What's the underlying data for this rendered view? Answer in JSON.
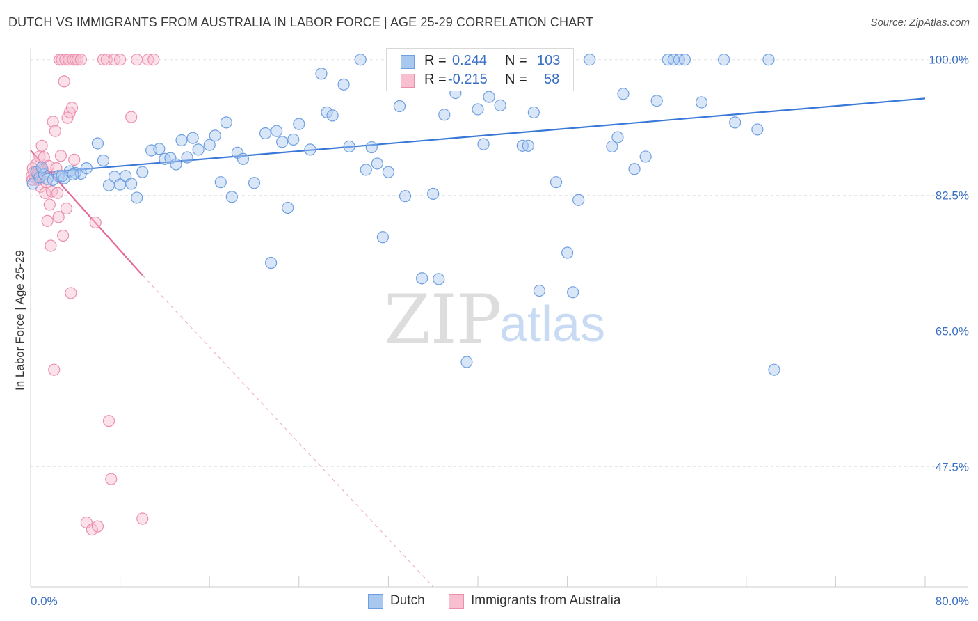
{
  "title": "DUTCH VS IMMIGRANTS FROM AUSTRALIA IN LABOR FORCE | AGE 25-29 CORRELATION CHART",
  "source": "Source: ZipAtlas.com",
  "watermark": {
    "zip": "ZIP",
    "atlas": "atlas"
  },
  "legend": {
    "rows": [
      {
        "r_label": "R =",
        "r_value": "0.244",
        "n_label": "N =",
        "n_value": "103",
        "color": "#a9c8f0",
        "border": "#6e9fe0"
      },
      {
        "r_label": "R =",
        "r_value": "-0.215",
        "n_label": "N =",
        "n_value": "58",
        "color": "#f7bfd0",
        "border": "#ec8fad"
      }
    ]
  },
  "bottom_legend": [
    {
      "label": "Dutch",
      "color": "#a9c8f0",
      "border": "#6e9fe0"
    },
    {
      "label": "Immigrants from Australia",
      "color": "#f7bfd0",
      "border": "#ec8fad"
    }
  ],
  "chart_data": {
    "type": "scatter",
    "title": "DUTCH VS IMMIGRANTS FROM AUSTRALIA IN LABOR FORCE | AGE 25-29 CORRELATION CHART",
    "xlabel": "",
    "ylabel": "In Labor Force | Age 25-29",
    "xlim": [
      0,
      80
    ],
    "ylim": [
      32,
      101.5
    ],
    "x_tick_labels": [
      "0.0%",
      "80.0%"
    ],
    "y_ticks": [
      47.5,
      65.0,
      82.5,
      100.0
    ],
    "y_tick_labels": [
      "47.5%",
      "65.0%",
      "82.5%",
      "100.0%"
    ],
    "grid": "horizontal dashed",
    "colors": {
      "dutch": "#3a78d8",
      "immigrants": "#e4699a"
    },
    "series": [
      {
        "name": "Dutch",
        "points": [
          [
            0.2,
            84.0
          ],
          [
            0.5,
            85.5
          ],
          [
            0.8,
            84.8
          ],
          [
            1.2,
            85.2
          ],
          [
            1.5,
            84.6
          ],
          [
            2.0,
            84.5
          ],
          [
            2.5,
            85.0
          ],
          [
            3.0,
            84.7
          ],
          [
            3.5,
            85.6
          ],
          [
            4.0,
            85.4
          ],
          [
            4.5,
            85.3
          ],
          [
            5.0,
            86.0
          ],
          [
            6.0,
            89.2
          ],
          [
            6.5,
            87.0
          ],
          [
            7.0,
            83.8
          ],
          [
            7.5,
            84.9
          ],
          [
            8.0,
            83.9
          ],
          [
            8.5,
            85.0
          ],
          [
            9.0,
            84.0
          ],
          [
            9.5,
            82.2
          ],
          [
            10.0,
            85.5
          ],
          [
            10.8,
            88.3
          ],
          [
            11.5,
            88.5
          ],
          [
            12.0,
            87.2
          ],
          [
            12.5,
            87.3
          ],
          [
            13.0,
            86.5
          ],
          [
            13.5,
            89.6
          ],
          [
            14.0,
            87.4
          ],
          [
            14.5,
            89.9
          ],
          [
            15.0,
            88.4
          ],
          [
            16.0,
            89.0
          ],
          [
            16.5,
            90.2
          ],
          [
            17.0,
            84.2
          ],
          [
            17.5,
            91.9
          ],
          [
            18.0,
            82.3
          ],
          [
            18.5,
            88.0
          ],
          [
            19.0,
            87.2
          ],
          [
            20.0,
            84.1
          ],
          [
            21.0,
            90.5
          ],
          [
            21.5,
            73.8
          ],
          [
            22.0,
            90.8
          ],
          [
            22.5,
            89.4
          ],
          [
            23.0,
            80.9
          ],
          [
            23.5,
            89.7
          ],
          [
            24.0,
            91.7
          ],
          [
            25.0,
            88.4
          ],
          [
            26.0,
            98.2
          ],
          [
            26.5,
            93.2
          ],
          [
            27.0,
            92.8
          ],
          [
            28.0,
            96.8
          ],
          [
            28.5,
            88.8
          ],
          [
            29.5,
            100.0
          ],
          [
            30.0,
            85.8
          ],
          [
            30.5,
            88.7
          ],
          [
            31.0,
            86.6
          ],
          [
            31.5,
            77.1
          ],
          [
            32.0,
            85.5
          ],
          [
            33.0,
            94.0
          ],
          [
            33.5,
            82.4
          ],
          [
            34.0,
            100.0
          ],
          [
            35.0,
            71.8
          ],
          [
            35.5,
            100.0
          ],
          [
            36.0,
            82.7
          ],
          [
            36.5,
            71.7
          ],
          [
            37.0,
            92.9
          ],
          [
            38.0,
            95.7
          ],
          [
            38.5,
            100.0
          ],
          [
            39.0,
            61.0
          ],
          [
            40.0,
            93.6
          ],
          [
            40.5,
            89.1
          ],
          [
            41.0,
            95.2
          ],
          [
            42.0,
            94.1
          ],
          [
            42.5,
            96.9
          ],
          [
            43.0,
            100.0
          ],
          [
            44.0,
            88.9
          ],
          [
            44.5,
            88.9
          ],
          [
            45.0,
            93.2
          ],
          [
            45.5,
            70.2
          ],
          [
            46.0,
            100.0
          ],
          [
            47.0,
            84.2
          ],
          [
            48.0,
            75.1
          ],
          [
            48.5,
            70.0
          ],
          [
            49.0,
            81.9
          ],
          [
            50.0,
            100.0
          ],
          [
            52.0,
            88.8
          ],
          [
            52.5,
            90.0
          ],
          [
            53.0,
            95.6
          ],
          [
            54.0,
            85.9
          ],
          [
            55.0,
            87.5
          ],
          [
            56.0,
            94.7
          ],
          [
            57.0,
            100.0
          ],
          [
            57.5,
            100.0
          ],
          [
            58.0,
            100.0
          ],
          [
            58.5,
            100.0
          ],
          [
            60.0,
            94.5
          ],
          [
            62.0,
            100.0
          ],
          [
            63.0,
            91.9
          ],
          [
            65.0,
            91.0
          ],
          [
            66.0,
            100.0
          ],
          [
            66.5,
            60.0
          ],
          [
            1.0,
            86.1
          ],
          [
            2.8,
            85.0
          ],
          [
            3.8,
            85.2
          ]
        ],
        "trend": {
          "x": [
            0,
            80
          ],
          "y": [
            85.3,
            95.0
          ]
        }
      },
      {
        "name": "Immigrants from Australia",
        "points": [
          [
            0.1,
            85.0
          ],
          [
            0.2,
            86.0
          ],
          [
            0.3,
            85.5
          ],
          [
            0.4,
            84.8
          ],
          [
            0.5,
            86.5
          ],
          [
            0.6,
            85.2
          ],
          [
            0.7,
            84.5
          ],
          [
            0.8,
            87.5
          ],
          [
            0.9,
            83.6
          ],
          [
            1.0,
            88.9
          ],
          [
            1.1,
            85.8
          ],
          [
            1.2,
            87.4
          ],
          [
            1.3,
            82.8
          ],
          [
            1.4,
            84.2
          ],
          [
            1.5,
            79.2
          ],
          [
            1.6,
            86.3
          ],
          [
            1.7,
            81.3
          ],
          [
            1.8,
            76.0
          ],
          [
            1.9,
            83.0
          ],
          [
            2.0,
            92.0
          ],
          [
            2.1,
            60.0
          ],
          [
            2.2,
            90.8
          ],
          [
            2.3,
            86.0
          ],
          [
            2.4,
            82.8
          ],
          [
            2.5,
            79.7
          ],
          [
            2.6,
            100.0
          ],
          [
            2.7,
            87.6
          ],
          [
            2.8,
            100.0
          ],
          [
            2.9,
            77.3
          ],
          [
            3.0,
            97.2
          ],
          [
            3.1,
            100.0
          ],
          [
            3.2,
            80.8
          ],
          [
            3.3,
            92.5
          ],
          [
            3.4,
            100.0
          ],
          [
            3.5,
            93.2
          ],
          [
            3.6,
            69.9
          ],
          [
            3.7,
            93.8
          ],
          [
            3.8,
            100.0
          ],
          [
            3.9,
            87.1
          ],
          [
            4.0,
            100.0
          ],
          [
            4.2,
            100.0
          ],
          [
            4.5,
            100.0
          ],
          [
            5.0,
            40.3
          ],
          [
            5.5,
            39.4
          ],
          [
            5.8,
            79.0
          ],
          [
            6.0,
            39.8
          ],
          [
            6.5,
            100.0
          ],
          [
            6.8,
            100.0
          ],
          [
            7.0,
            53.4
          ],
          [
            7.2,
            45.9
          ],
          [
            7.5,
            100.0
          ],
          [
            8.0,
            100.0
          ],
          [
            9.0,
            92.6
          ],
          [
            9.5,
            100.0
          ],
          [
            10.0,
            40.8
          ],
          [
            10.5,
            100.0
          ],
          [
            11.0,
            100.0
          ],
          [
            0.15,
            84.5
          ]
        ],
        "trend": {
          "x": [
            0,
            10
          ],
          "y": [
            88.3,
            72.2
          ]
        },
        "trend_extension": {
          "x": [
            10,
            36
          ],
          "y": [
            72.2,
            32
          ]
        }
      }
    ]
  }
}
